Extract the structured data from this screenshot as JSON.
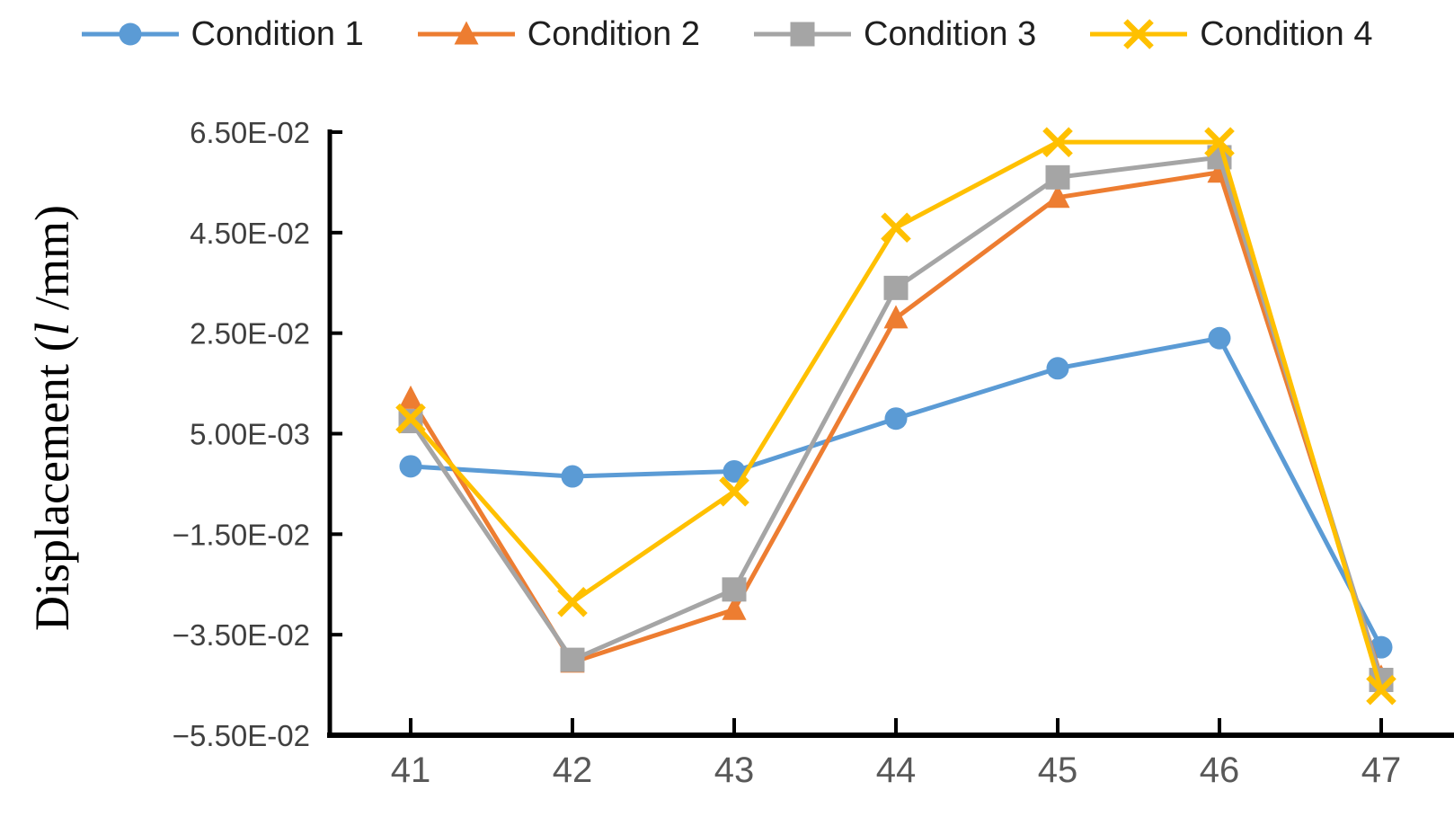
{
  "figure": {
    "y_axis_title": {
      "prefix": "Displacement (",
      "italic": "l",
      "suffix": " /mm)"
    }
  },
  "chart_data": {
    "type": "line",
    "title": "",
    "xlabel": "",
    "ylabel": "Displacement (l /mm)",
    "legend_position": "top",
    "grid": false,
    "axis_color": "#000000",
    "x_tick_label_color": "#595959",
    "y_tick_label_color": "#404040",
    "categories": [
      41,
      42,
      43,
      44,
      45,
      46,
      47
    ],
    "y_axis": {
      "min": -0.055,
      "max": 0.065,
      "step": 0.02,
      "tick_values": [
        0.065,
        0.045,
        0.025,
        0.005,
        -0.015,
        -0.035,
        -0.055
      ],
      "tick_labels": [
        "6.50E-02",
        "4.50E-02",
        "2.50E-02",
        "5.00E-03",
        "−1.50E-02",
        "−3.50E-02",
        "−5.50E-02"
      ]
    },
    "series": [
      {
        "name": "Condition 1",
        "color": "#5B9BD5",
        "marker": "circle",
        "values": [
          -0.0015,
          -0.0035,
          -0.0025,
          0.008,
          0.018,
          0.024,
          -0.0375
        ]
      },
      {
        "name": "Condition 2",
        "color": "#ED7D31",
        "marker": "triangle",
        "values": [
          0.012,
          -0.0405,
          -0.03,
          0.028,
          0.052,
          0.057,
          -0.0435
        ]
      },
      {
        "name": "Condition 3",
        "color": "#A5A5A5",
        "marker": "square",
        "values": [
          0.0075,
          -0.04,
          -0.026,
          0.034,
          0.056,
          0.06,
          -0.044
        ]
      },
      {
        "name": "Condition 4",
        "color": "#FFC000",
        "marker": "x",
        "values": [
          0.008,
          -0.0285,
          -0.0065,
          0.046,
          0.063,
          0.063,
          -0.046
        ]
      }
    ]
  }
}
